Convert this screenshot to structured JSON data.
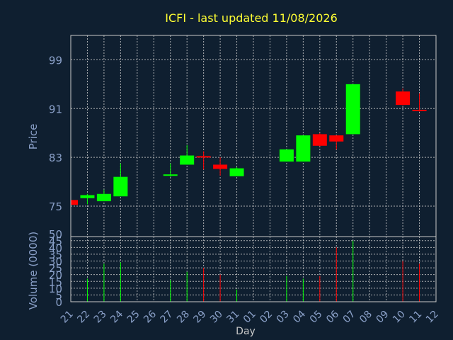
{
  "title": "ICFI - last updated 11/08/2026",
  "colors": {
    "background": "#0f1f30",
    "frame": "#c8c8c8",
    "grid": "#c8c8c8",
    "title": "#ffff33",
    "axis_text": "#8aa0c8",
    "up": "#00ff00",
    "down": "#ff0000"
  },
  "chart_data": [
    {
      "type": "candlestick",
      "ylabel": "Price",
      "ylim": [
        70,
        103
      ],
      "yticks": [
        75,
        83,
        91,
        99
      ],
      "grid": true,
      "candles": [
        {
          "day": "21",
          "open": 76.0,
          "high": 76.0,
          "low": 75.0,
          "close": 75.2
        },
        {
          "day": "22",
          "open": 76.3,
          "high": 77.0,
          "low": 75.3,
          "close": 76.8
        },
        {
          "day": "23",
          "open": 75.8,
          "high": 77.7,
          "low": 75.8,
          "close": 77.0
        },
        {
          "day": "24",
          "open": 76.6,
          "high": 82.0,
          "low": 76.6,
          "close": 79.8
        },
        {
          "day": "27",
          "open": 80.0,
          "high": 82.0,
          "low": 79.8,
          "close": 80.2
        },
        {
          "day": "28",
          "open": 81.8,
          "high": 85.0,
          "low": 81.8,
          "close": 83.3
        },
        {
          "day": "29",
          "open": 83.2,
          "high": 84.0,
          "low": 81.0,
          "close": 83.0
        },
        {
          "day": "30",
          "open": 81.8,
          "high": 83.0,
          "low": 80.0,
          "close": 81.1
        },
        {
          "day": "31",
          "open": 79.9,
          "high": 81.4,
          "low": 79.9,
          "close": 81.2
        },
        {
          "day": "03",
          "open": 82.3,
          "high": 84.3,
          "low": 82.3,
          "close": 84.3
        },
        {
          "day": "04",
          "open": 82.3,
          "high": 86.6,
          "low": 82.3,
          "close": 86.6
        },
        {
          "day": "05",
          "open": 86.8,
          "high": 87.0,
          "low": 84.8,
          "close": 84.9
        },
        {
          "day": "06",
          "open": 86.6,
          "high": 86.6,
          "low": 84.3,
          "close": 85.6
        },
        {
          "day": "07",
          "open": 86.8,
          "high": 95.0,
          "low": 86.8,
          "close": 95.0
        },
        {
          "day": "10",
          "open": 93.8,
          "high": 94.3,
          "low": 91.5,
          "close": 91.6
        },
        {
          "day": "11",
          "open": 90.8,
          "high": 93.5,
          "low": 90.5,
          "close": 90.6
        }
      ]
    },
    {
      "type": "bar",
      "ylabel": "Volume (0000)",
      "xlabel": "Day",
      "ylim": [
        0,
        48
      ],
      "yticks": [
        0,
        5,
        10,
        15,
        20,
        25,
        30,
        35,
        40,
        45,
        50
      ],
      "grid": true,
      "categories": [
        "21",
        "22",
        "23",
        "24",
        "25",
        "26",
        "27",
        "28",
        "29",
        "30",
        "31",
        "01",
        "02",
        "03",
        "04",
        "05",
        "06",
        "07",
        "08",
        "09",
        "10",
        "11",
        "12"
      ],
      "values": [
        0,
        17,
        28,
        29,
        0,
        0,
        16,
        22,
        25,
        20,
        9,
        0,
        0,
        19,
        17,
        19,
        40,
        45,
        0,
        0,
        30,
        28,
        0
      ],
      "bar_direction": [
        "none",
        "up",
        "up",
        "up",
        "none",
        "none",
        "up",
        "up",
        "down",
        "down",
        "up",
        "none",
        "none",
        "up",
        "up",
        "down",
        "down",
        "up",
        "none",
        "none",
        "down",
        "down",
        "none"
      ]
    }
  ]
}
